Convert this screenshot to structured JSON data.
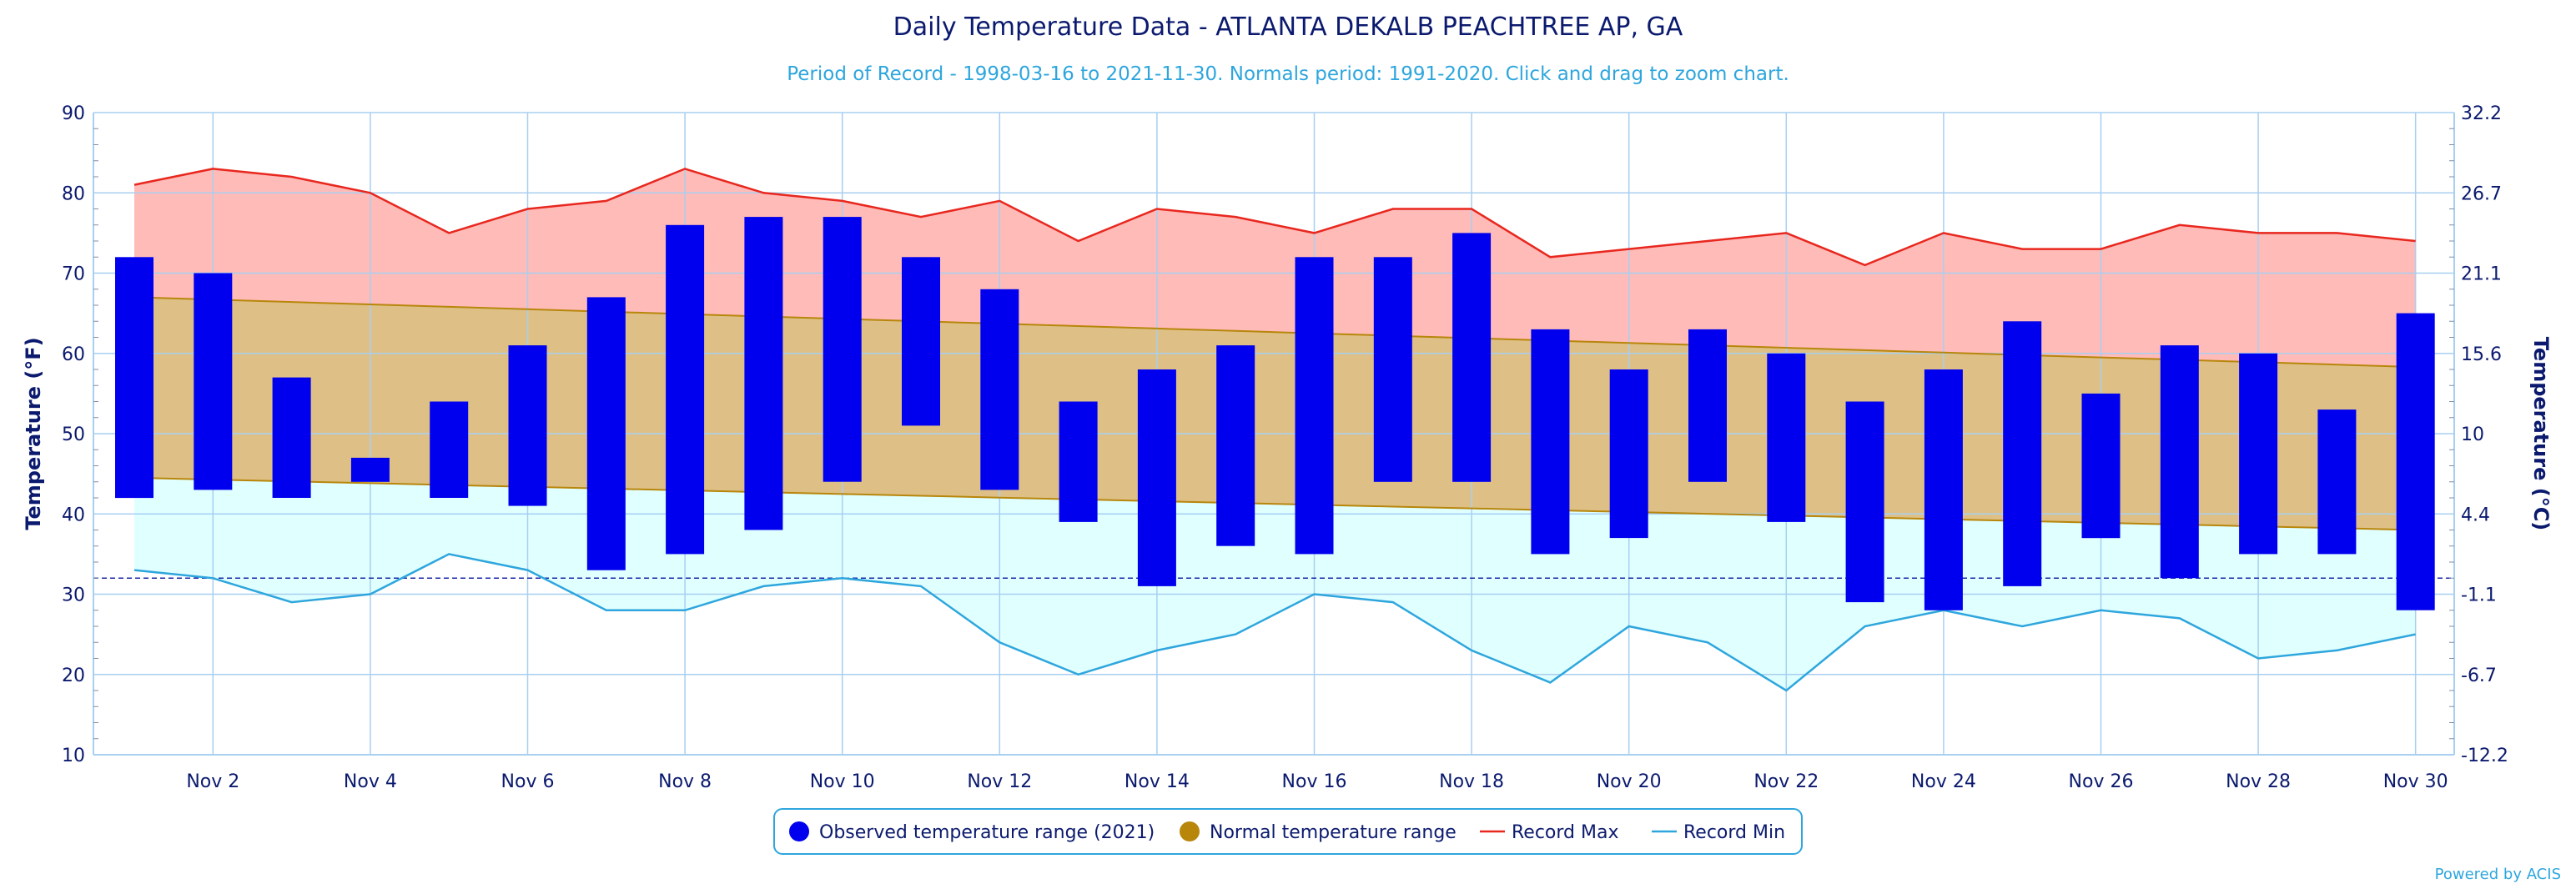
{
  "chart_data": {
    "type": "bar",
    "title": "Daily Temperature Data - ATLANTA DEKALB PEACHTREE AP, GA",
    "subtitle": "Period of Record - 1998-03-16 to 2021-11-30. Normals period: 1991-2020. Click and drag to zoom chart.",
    "ylabel_left": "Temperature (°F)",
    "ylabel_right": "Temperature (°C)",
    "ylim": [
      10,
      90
    ],
    "y_ticks": [
      10,
      20,
      30,
      40,
      50,
      60,
      70,
      80,
      90
    ],
    "y_ticks_right": [
      "-12.2",
      "-6.7",
      "-1.1",
      "4.4",
      "10",
      "15.6",
      "21.1",
      "26.7",
      "32.2"
    ],
    "x_tick_days": [
      2,
      4,
      6,
      8,
      10,
      12,
      14,
      16,
      18,
      20,
      22,
      24,
      26,
      28,
      30
    ],
    "x_tick_labels": [
      "Nov 2",
      "Nov 4",
      "Nov 6",
      "Nov 8",
      "Nov 10",
      "Nov 12",
      "Nov 14",
      "Nov 16",
      "Nov 18",
      "Nov 20",
      "Nov 22",
      "Nov 24",
      "Nov 26",
      "Nov 28",
      "Nov 30"
    ],
    "freezing_line": 32,
    "days": [
      1,
      2,
      3,
      4,
      5,
      6,
      7,
      8,
      9,
      10,
      11,
      12,
      13,
      14,
      15,
      16,
      17,
      18,
      19,
      20,
      21,
      22,
      23,
      24,
      25,
      26,
      27,
      28,
      29,
      30
    ],
    "observed_max": [
      72,
      70,
      57,
      47,
      54,
      61,
      67,
      76,
      77,
      77,
      72,
      68,
      54,
      58,
      61,
      72,
      72,
      75,
      63,
      58,
      63,
      60,
      54,
      58,
      64,
      55,
      61,
      60,
      53,
      65
    ],
    "observed_min": [
      42,
      43,
      42,
      44,
      42,
      41,
      33,
      35,
      38,
      44,
      51,
      43,
      39,
      31,
      36,
      35,
      44,
      44,
      35,
      37,
      44,
      39,
      29,
      28,
      31,
      37,
      32,
      35,
      35,
      28
    ],
    "normal_max_start": 67,
    "normal_max_end": 58.3,
    "normal_min_start": 44.5,
    "normal_min_end": 38,
    "record_max": [
      81,
      83,
      82,
      80,
      75,
      78,
      79,
      83,
      80,
      79,
      77,
      79,
      74,
      78,
      77,
      75,
      78,
      78,
      72,
      73,
      74,
      75,
      71,
      75,
      73,
      73,
      76,
      75,
      75,
      74
    ],
    "record_min": [
      33,
      32,
      29,
      30,
      35,
      33,
      28,
      28,
      31,
      32,
      31,
      24,
      20,
      23,
      25,
      30,
      29,
      23,
      19,
      26,
      24,
      18,
      26,
      28,
      26,
      28,
      27,
      22,
      23,
      25
    ],
    "legend": [
      {
        "label": "Observed temperature range (2021)",
        "color": "#0000ee",
        "kind": "dot"
      },
      {
        "label": "Normal temperature range",
        "color": "#b8860b",
        "kind": "dot"
      },
      {
        "label": "Record Max",
        "color": "#e8271e",
        "kind": "line"
      },
      {
        "label": "Record Min",
        "color": "#2ea6dd",
        "kind": "line"
      }
    ],
    "colors": {
      "observed": "#0000ee",
      "normal_fill": "#dec086",
      "normal_line": "#b8860b",
      "record_max_fill": "#ffbbb8",
      "record_max_line": "#e8271e",
      "record_min_fill": "#e0ffff",
      "record_min_line": "#2ea6dd",
      "grid": "#a8cff0",
      "freezing": "#1a2aa8"
    }
  },
  "credit": "Powered by ACIS"
}
